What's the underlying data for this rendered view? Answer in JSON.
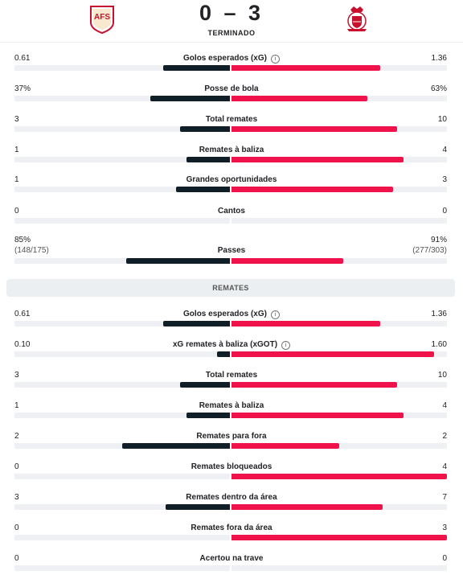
{
  "match": {
    "score": "0 – 3",
    "status": "TERMINADO"
  },
  "colors": {
    "home_bar": "#0f1e27",
    "away_bar": "#f0124a",
    "track": "#eef0f3"
  },
  "stats_top": [
    {
      "label": "Golos esperados (xG)",
      "home": "0.61",
      "away": "1.36",
      "home_value": 0.61,
      "away_value": 1.36,
      "info_icon": true
    },
    {
      "label": "Posse de bola",
      "home": "37%",
      "away": "63%",
      "home_value": 37,
      "away_value": 63
    },
    {
      "label": "Total remates",
      "home": "3",
      "away": "10",
      "home_value": 3,
      "away_value": 10
    },
    {
      "label": "Remates à baliza",
      "home": "1",
      "away": "4",
      "home_value": 1,
      "away_value": 4
    },
    {
      "label": "Grandes oportunidades",
      "home": "1",
      "away": "3",
      "home_value": 1,
      "away_value": 3
    },
    {
      "label": "Cantos",
      "home": "0",
      "away": "0",
      "home_value": 0,
      "away_value": 0
    },
    {
      "label": "Passes",
      "home": "85%",
      "away": "91%",
      "home_sub": "(148/175)",
      "away_sub": "(277/303)",
      "home_value": 85,
      "away_value": 91
    }
  ],
  "section_title": "REMATES",
  "stats_shots": [
    {
      "label": "Golos esperados (xG)",
      "home": "0.61",
      "away": "1.36",
      "home_value": 0.61,
      "away_value": 1.36,
      "info_icon": true
    },
    {
      "label": "xG remates à baliza (xGOT)",
      "home": "0.10",
      "away": "1.60",
      "home_value": 0.1,
      "away_value": 1.6,
      "info_icon": true
    },
    {
      "label": "Total remates",
      "home": "3",
      "away": "10",
      "home_value": 3,
      "away_value": 10
    },
    {
      "label": "Remates à baliza",
      "home": "1",
      "away": "4",
      "home_value": 1,
      "away_value": 4
    },
    {
      "label": "Remates para fora",
      "home": "2",
      "away": "2",
      "home_value": 2,
      "away_value": 2
    },
    {
      "label": "Remates bloqueados",
      "home": "0",
      "away": "4",
      "home_value": 0,
      "away_value": 4
    },
    {
      "label": "Remates dentro da área",
      "home": "3",
      "away": "7",
      "home_value": 3,
      "away_value": 7
    },
    {
      "label": "Remates fora da área",
      "home": "0",
      "away": "3",
      "home_value": 0,
      "away_value": 3
    },
    {
      "label": "Acertou na trave",
      "home": "0",
      "away": "0",
      "home_value": 0,
      "away_value": 0
    }
  ]
}
